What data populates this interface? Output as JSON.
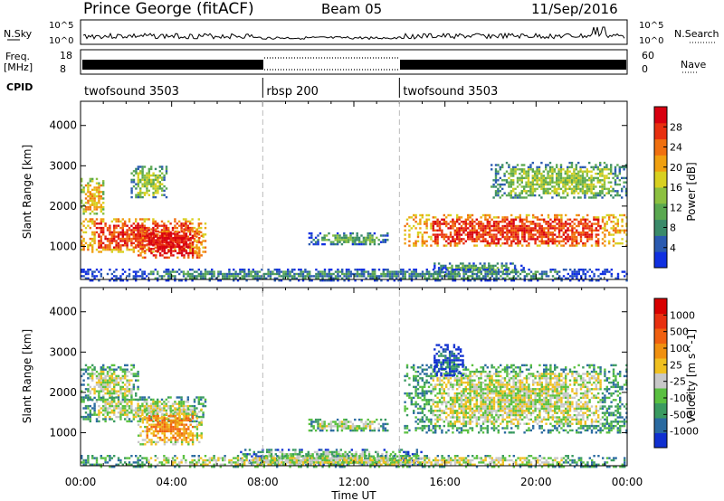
{
  "header": {
    "title": "Prince George (fitACF)",
    "beam": "Beam 05",
    "date": "11/Sep/2016"
  },
  "noise_panel": {
    "left_label": "N.Sky",
    "right_label": "N.Search",
    "left_ticks": [
      "10^5",
      "10^0"
    ],
    "right_ticks": [
      "10^5",
      "10^0"
    ]
  },
  "freq_panel": {
    "left_label_1": "Freq.",
    "left_label_2": "[MHz]",
    "right_label": "Nave",
    "left_ticks": [
      "18",
      "8"
    ],
    "right_ticks": [
      "60",
      "0"
    ]
  },
  "cpid_panel": {
    "label": "CPID",
    "segments": [
      {
        "name": "twofsound 3503",
        "start_h": 0,
        "end_h": 8
      },
      {
        "name": "rbsp 200",
        "start_h": 8,
        "end_h": 14
      },
      {
        "name": "twofsound 3503",
        "start_h": 14,
        "end_h": 24
      }
    ]
  },
  "chart_data": [
    {
      "type": "heatmap",
      "panel": "power",
      "ylabel": "Slant Range [km]",
      "ylim": [
        180,
        4600
      ],
      "yticks": [
        "1000",
        "2000",
        "3000",
        "4000"
      ],
      "xlim_hours": [
        0,
        24
      ],
      "colorbar": {
        "label": "Power [dB]",
        "ticks": [
          "4",
          "8",
          "12",
          "16",
          "20",
          "24",
          "28"
        ],
        "colors": [
          "#1030e0",
          "#2a5ab0",
          "#3a8a6a",
          "#5aa850",
          "#8cc040",
          "#d8d020",
          "#f0a010",
          "#f07010",
          "#e83010",
          "#d80010"
        ]
      },
      "regions": [
        {
          "x0": 0.0,
          "x1": 5.5,
          "y0": 850,
          "y1": 1700,
          "level": 8
        },
        {
          "x0": 0.0,
          "x1": 1.0,
          "y0": 1800,
          "y1": 2700,
          "level": 6
        },
        {
          "x0": 2.5,
          "x1": 5.3,
          "y0": 700,
          "y1": 1450,
          "level": 9
        },
        {
          "x0": 2.2,
          "x1": 3.8,
          "y0": 2200,
          "y1": 3000,
          "level": 4
        },
        {
          "x0": 10.0,
          "x1": 13.5,
          "y0": 1050,
          "y1": 1350,
          "level": 3
        },
        {
          "x0": 14.2,
          "x1": 24.0,
          "y0": 1000,
          "y1": 1800,
          "level": 8
        },
        {
          "x0": 18.0,
          "x1": 24.0,
          "y0": 2200,
          "y1": 3100,
          "level": 4
        },
        {
          "x0": 15.5,
          "x1": 19.5,
          "y0": 350,
          "y1": 600,
          "level": 3
        },
        {
          "x0": 0.0,
          "x1": 24.0,
          "y0": 180,
          "y1": 450,
          "level": 2
        }
      ]
    },
    {
      "type": "heatmap",
      "panel": "velocity",
      "ylabel": "Slant Range [km]",
      "xlabel": "Time UT",
      "ylim": [
        180,
        4600
      ],
      "yticks": [
        "1000",
        "2000",
        "3000",
        "4000"
      ],
      "xlim_hours": [
        0,
        24
      ],
      "xticks": [
        "00:00",
        "04:00",
        "08:00",
        "12:00",
        "16:00",
        "20:00",
        "00:00"
      ],
      "colorbar": {
        "label": "Velocity [m s^-1]",
        "ticks": [
          "1000",
          "500",
          "100",
          "25",
          "-25",
          "-100",
          "-500",
          "-1000"
        ],
        "colors": [
          "#1030d0",
          "#2a6aa0",
          "#3a9a60",
          "#5ac040",
          "#c8c8c8",
          "#f0c020",
          "#f09010",
          "#f06010",
          "#e83010",
          "#d80000"
        ]
      },
      "regions": [
        {
          "x0": 0.0,
          "x1": 2.5,
          "y0": 1800,
          "y1": 2700,
          "level": 4
        },
        {
          "x0": 0.0,
          "x1": 5.5,
          "y0": 1300,
          "y1": 1900,
          "level": 4
        },
        {
          "x0": 2.5,
          "x1": 5.3,
          "y0": 700,
          "y1": 1600,
          "level": 6
        },
        {
          "x0": 10.0,
          "x1": 13.5,
          "y0": 1050,
          "y1": 1350,
          "level": 4
        },
        {
          "x0": 14.2,
          "x1": 24.0,
          "y0": 1000,
          "y1": 2700,
          "level": 4
        },
        {
          "x0": 15.5,
          "x1": 16.8,
          "y0": 2400,
          "y1": 3200,
          "level": 1
        },
        {
          "x0": 7.0,
          "x1": 15.0,
          "y0": 180,
          "y1": 600,
          "level": 3
        },
        {
          "x0": 0.0,
          "x1": 24.0,
          "y0": 180,
          "y1": 450,
          "level": 4
        }
      ]
    }
  ]
}
